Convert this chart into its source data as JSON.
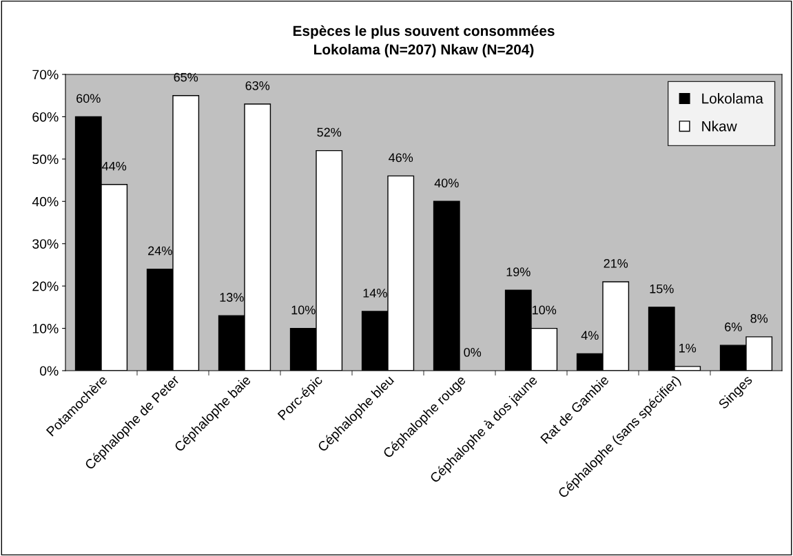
{
  "chart_data": {
    "type": "bar",
    "title": "Espèces le plus souvent consommées\nLokolama (N=207) Nkaw (N=204)",
    "categories": [
      "Potamochère",
      "Céphalophe de Peter",
      "Céphalophe baie",
      "Porc-épic",
      "Céphalophe bleu",
      "Céphalophe rouge",
      "Céphalophe à dos jaune",
      "Rat de Gambie",
      "Céphalophe (sans spécifier)",
      "Singes"
    ],
    "series": [
      {
        "name": "Lokolama",
        "color": "#000000",
        "values": [
          60,
          24,
          13,
          10,
          14,
          40,
          19,
          4,
          15,
          6
        ],
        "value_labels": [
          "60%",
          "24%",
          "13%",
          "10%",
          "14%",
          "40%",
          "19%",
          "4%",
          "15%",
          "6%"
        ]
      },
      {
        "name": "Nkaw",
        "color": "#ffffff",
        "values": [
          44,
          65,
          63,
          52,
          46,
          0,
          10,
          21,
          1,
          8
        ],
        "value_labels": [
          "44%",
          "65%",
          "63%",
          "52%",
          "46%",
          "0%",
          "10%",
          "21%",
          "1%",
          "8%"
        ]
      }
    ],
    "ylim": [
      0,
      70
    ],
    "yticks": [
      {
        "value": 0,
        "label": "0%"
      },
      {
        "value": 10,
        "label": "10%"
      },
      {
        "value": 20,
        "label": "20%"
      },
      {
        "value": 30,
        "label": "30%"
      },
      {
        "value": 40,
        "label": "40%"
      },
      {
        "value": 50,
        "label": "50%"
      },
      {
        "value": 60,
        "label": "60%"
      },
      {
        "value": 70,
        "label": "70%"
      }
    ],
    "grid": false,
    "legend": "top right"
  }
}
